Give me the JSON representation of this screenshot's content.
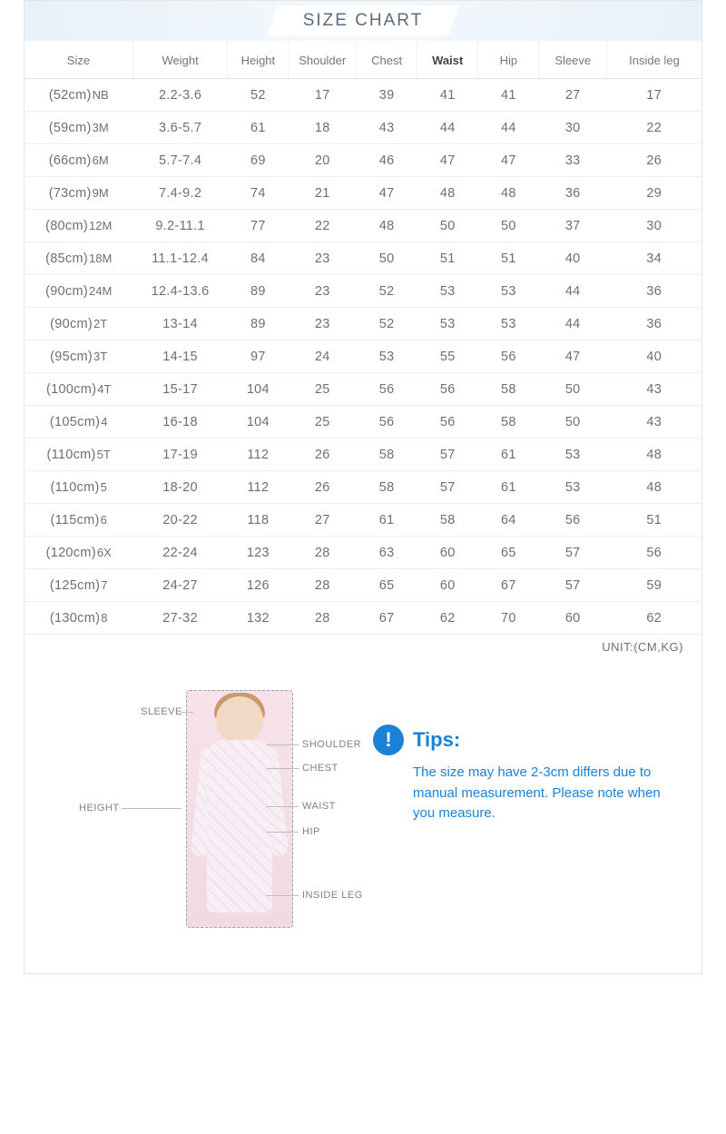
{
  "title": "SIZE CHART",
  "unit_label": "UNIT:(CM,KG)",
  "columns": [
    "Size",
    "Weight",
    "Height",
    "Shoulder",
    "Chest",
    "Waist",
    "Hip",
    "Sleeve",
    "Inside leg"
  ],
  "col_widths": [
    "16%",
    "14%",
    "9%",
    "10%",
    "9%",
    "9%",
    "9%",
    "10%",
    "14%"
  ],
  "waist_col_index": 5,
  "rows": [
    {
      "size_cm": "(52cm)",
      "size_lbl": "NB",
      "cells": [
        "2.2-3.6",
        "52",
        "17",
        "39",
        "41",
        "41",
        "27",
        "17"
      ]
    },
    {
      "size_cm": "(59cm)",
      "size_lbl": "3M",
      "cells": [
        "3.6-5.7",
        "61",
        "18",
        "43",
        "44",
        "44",
        "30",
        "22"
      ]
    },
    {
      "size_cm": "(66cm)",
      "size_lbl": "6M",
      "cells": [
        "5.7-7.4",
        "69",
        "20",
        "46",
        "47",
        "47",
        "33",
        "26"
      ]
    },
    {
      "size_cm": "(73cm)",
      "size_lbl": "9M",
      "cells": [
        "7.4-9.2",
        "74",
        "21",
        "47",
        "48",
        "48",
        "36",
        "29"
      ]
    },
    {
      "size_cm": "(80cm)",
      "size_lbl": "12M",
      "cells": [
        "9.2-11.1",
        "77",
        "22",
        "48",
        "50",
        "50",
        "37",
        "30"
      ]
    },
    {
      "size_cm": "(85cm)",
      "size_lbl": "18M",
      "cells": [
        "11.1-12.4",
        "84",
        "23",
        "50",
        "51",
        "51",
        "40",
        "34"
      ]
    },
    {
      "size_cm": "(90cm)",
      "size_lbl": "24M",
      "cells": [
        "12.4-13.6",
        "89",
        "23",
        "52",
        "53",
        "53",
        "44",
        "36"
      ]
    },
    {
      "size_cm": "(90cm)",
      "size_lbl": "2T",
      "cells": [
        "13-14",
        "89",
        "23",
        "52",
        "53",
        "53",
        "44",
        "36"
      ]
    },
    {
      "size_cm": "(95cm)",
      "size_lbl": "3T",
      "cells": [
        "14-15",
        "97",
        "24",
        "53",
        "55",
        "56",
        "47",
        "40"
      ]
    },
    {
      "size_cm": "(100cm)",
      "size_lbl": "4T",
      "cells": [
        "15-17",
        "104",
        "25",
        "56",
        "56",
        "58",
        "50",
        "43"
      ]
    },
    {
      "size_cm": "(105cm)",
      "size_lbl": "4",
      "cells": [
        "16-18",
        "104",
        "25",
        "56",
        "56",
        "58",
        "50",
        "43"
      ]
    },
    {
      "size_cm": "(110cm)",
      "size_lbl": "5T",
      "cells": [
        "17-19",
        "112",
        "26",
        "58",
        "57",
        "61",
        "53",
        "48"
      ]
    },
    {
      "size_cm": "(110cm)",
      "size_lbl": "5",
      "cells": [
        "18-20",
        "112",
        "26",
        "58",
        "57",
        "61",
        "53",
        "48"
      ]
    },
    {
      "size_cm": "(115cm)",
      "size_lbl": "6",
      "cells": [
        "20-22",
        "118",
        "27",
        "61",
        "58",
        "64",
        "56",
        "51"
      ]
    },
    {
      "size_cm": "(120cm)",
      "size_lbl": "6X",
      "cells": [
        "22-24",
        "123",
        "28",
        "63",
        "60",
        "65",
        "57",
        "56"
      ]
    },
    {
      "size_cm": "(125cm)",
      "size_lbl": "7",
      "cells": [
        "24-27",
        "126",
        "28",
        "65",
        "60",
        "67",
        "57",
        "59"
      ]
    },
    {
      "size_cm": "(130cm)",
      "size_lbl": "8",
      "cells": [
        "27-32",
        "132",
        "28",
        "67",
        "62",
        "70",
        "60",
        "62"
      ]
    }
  ],
  "diagram_labels": {
    "sleeve": "SLEEVE",
    "shoulder": "SHOULDER",
    "chest": "CHEST",
    "waist": "WAIST",
    "hip": "HIP",
    "inside_leg": "INSIDE LEG",
    "height": "HEIGHT"
  },
  "tips": {
    "title": "Tips:",
    "icon": "!",
    "body": "The size may have 2-3cm differs due to manual measurement. Please note when you measure."
  },
  "colors": {
    "border": "#e5e5e5",
    "header_bg_gradient": [
      "#e8f1f9",
      "#f3f8fc",
      "#e8f1f9"
    ],
    "text": "#6a7078",
    "accent": "#1a82d6"
  }
}
